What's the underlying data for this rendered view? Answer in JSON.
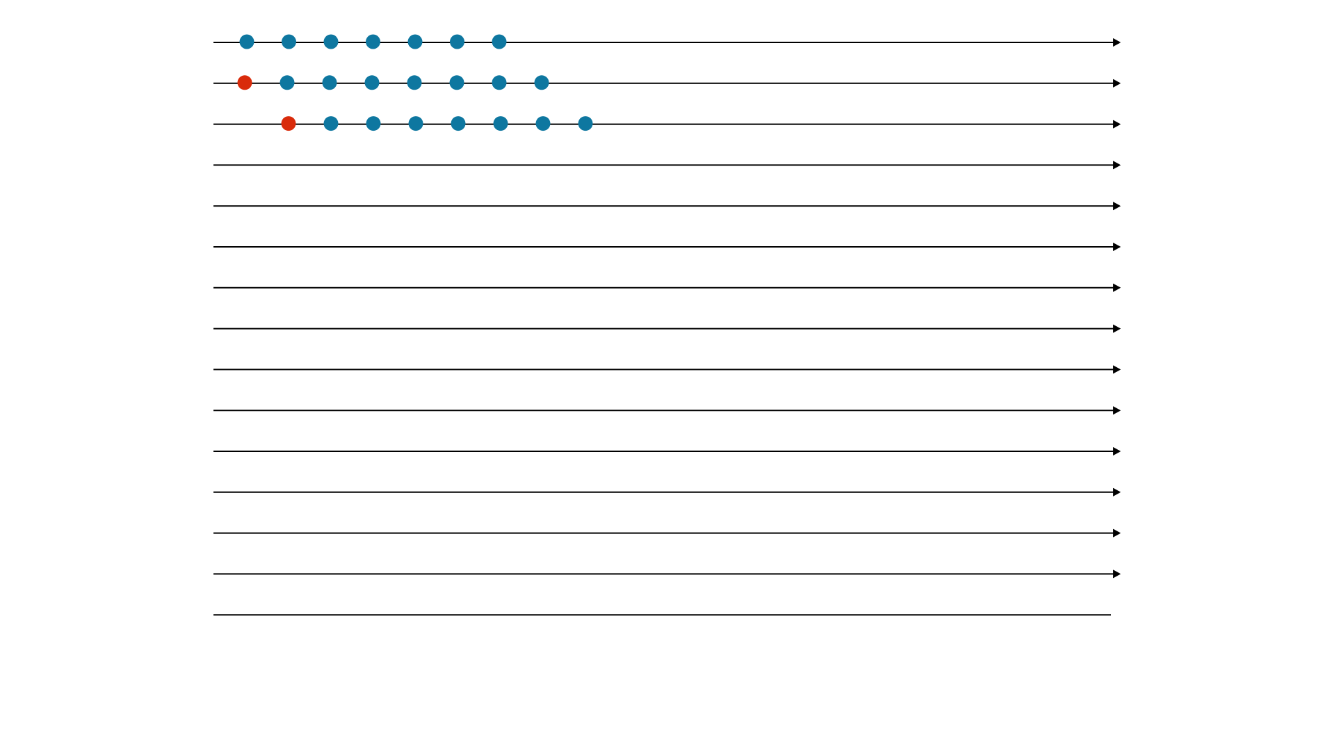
{
  "colors": {
    "line": "#000000",
    "dot_blue": "#0e77a0",
    "dot_red": "#d92b0b",
    "background": "#ffffff"
  },
  "timelines": [
    {
      "arrow": true,
      "dots": [
        "blue",
        "blue",
        "blue",
        "blue",
        "blue",
        "blue",
        "blue"
      ]
    },
    {
      "arrow": true,
      "dots": [
        "red",
        "blue",
        "blue",
        "blue",
        "blue",
        "blue",
        "blue",
        "blue"
      ]
    },
    {
      "arrow": true,
      "dots": [
        "red",
        "blue",
        "blue",
        "blue",
        "blue",
        "blue",
        "blue",
        "blue"
      ]
    },
    {
      "arrow": true,
      "dots": []
    },
    {
      "arrow": true,
      "dots": []
    },
    {
      "arrow": true,
      "dots": []
    },
    {
      "arrow": true,
      "dots": []
    },
    {
      "arrow": true,
      "dots": []
    },
    {
      "arrow": true,
      "dots": []
    },
    {
      "arrow": true,
      "dots": []
    },
    {
      "arrow": true,
      "dots": []
    },
    {
      "arrow": true,
      "dots": []
    },
    {
      "arrow": true,
      "dots": []
    },
    {
      "arrow": true,
      "dots": []
    },
    {
      "arrow": false,
      "dots": []
    }
  ]
}
